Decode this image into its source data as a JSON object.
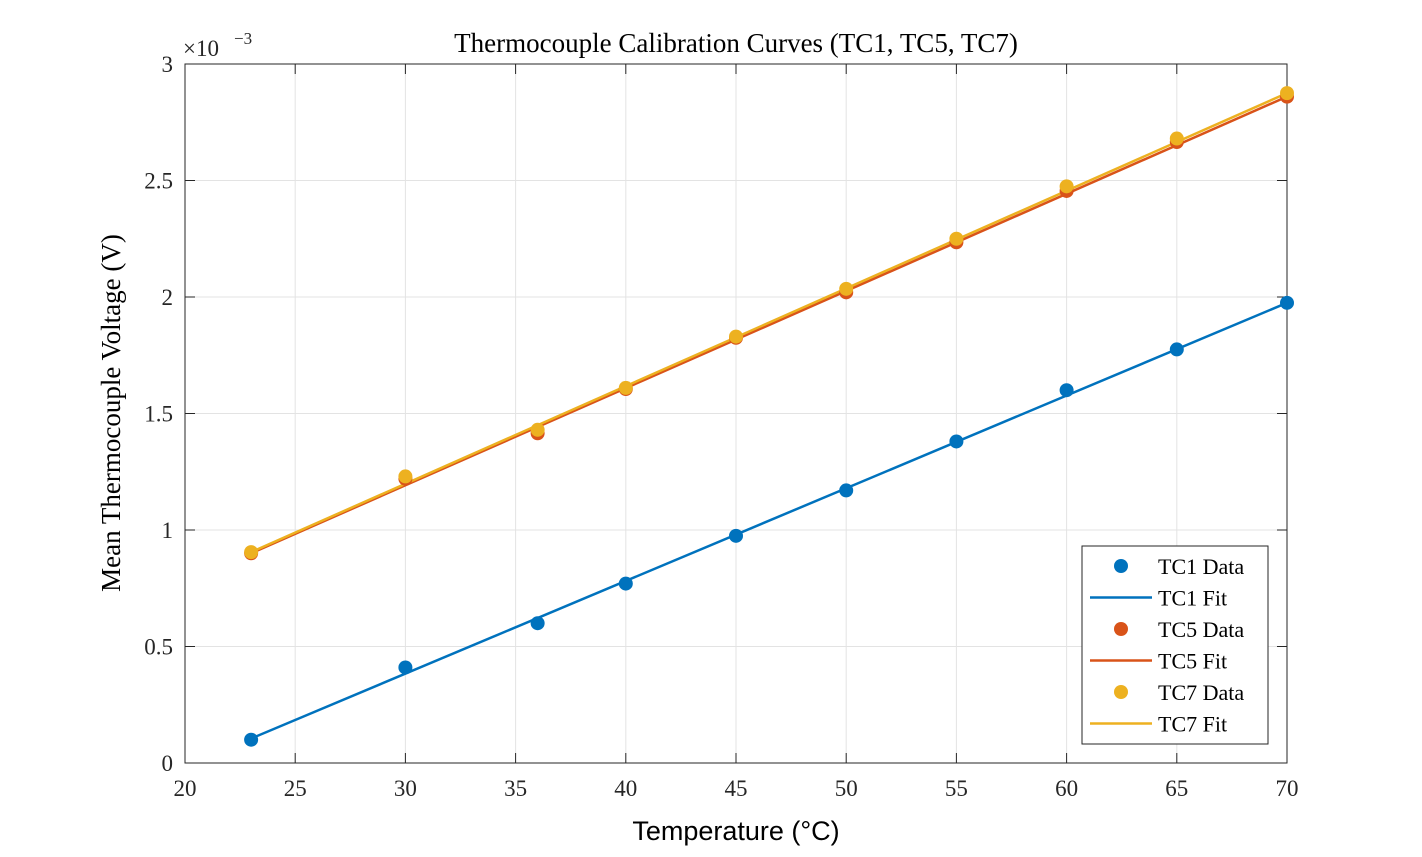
{
  "chart_data": {
    "type": "scatter",
    "title": "Thermocouple Calibration Curves (TC1, TC5, TC7)",
    "xlabel": "Temperature (°C)",
    "ylabel": "Mean Thermocouple Voltage (V)",
    "y_exponent": {
      "base": "×10",
      "power": "−3"
    },
    "xlim": [
      20,
      70
    ],
    "ylim": [
      0,
      3
    ],
    "x_ticks": [
      20,
      25,
      30,
      35,
      40,
      45,
      50,
      55,
      60,
      65,
      70
    ],
    "y_ticks": [
      0,
      0.5,
      1,
      1.5,
      2,
      2.5,
      3
    ],
    "x_tick_labels": [
      "20",
      "25",
      "30",
      "35",
      "40",
      "45",
      "50",
      "55",
      "60",
      "65",
      "70"
    ],
    "y_tick_labels": [
      "0",
      "0.5",
      "1",
      "1.5",
      "2",
      "2.5",
      "3"
    ],
    "grid": true,
    "legend_position": "bottom-right",
    "x": [
      23,
      30,
      36,
      40,
      45,
      50,
      55,
      60,
      65,
      70
    ],
    "series": [
      {
        "name": "TC1 Data",
        "kind": "points",
        "color": "#0072BD",
        "values": [
          0.1,
          0.41,
          0.6,
          0.77,
          0.975,
          1.17,
          1.38,
          1.6,
          1.775,
          1.975
        ]
      },
      {
        "name": "TC1 Fit",
        "kind": "line",
        "color": "#0072BD",
        "x": [
          23,
          70
        ],
        "values": [
          0.105,
          1.975
        ]
      },
      {
        "name": "TC5 Data",
        "kind": "points",
        "color": "#D95319",
        "values": [
          0.9,
          1.22,
          1.415,
          1.605,
          1.825,
          2.02,
          2.235,
          2.455,
          2.665,
          2.86
        ]
      },
      {
        "name": "TC5 Fit",
        "kind": "line",
        "color": "#D95319",
        "x": [
          23,
          70
        ],
        "values": [
          0.9,
          2.86
        ]
      },
      {
        "name": "TC7 Data",
        "kind": "points",
        "color": "#EDB120",
        "values": [
          0.905,
          1.23,
          1.43,
          1.61,
          1.83,
          2.035,
          2.25,
          2.475,
          2.68,
          2.875
        ]
      },
      {
        "name": "TC7 Fit",
        "kind": "line",
        "color": "#EDB120",
        "x": [
          23,
          70
        ],
        "values": [
          0.905,
          2.875
        ]
      }
    ]
  }
}
